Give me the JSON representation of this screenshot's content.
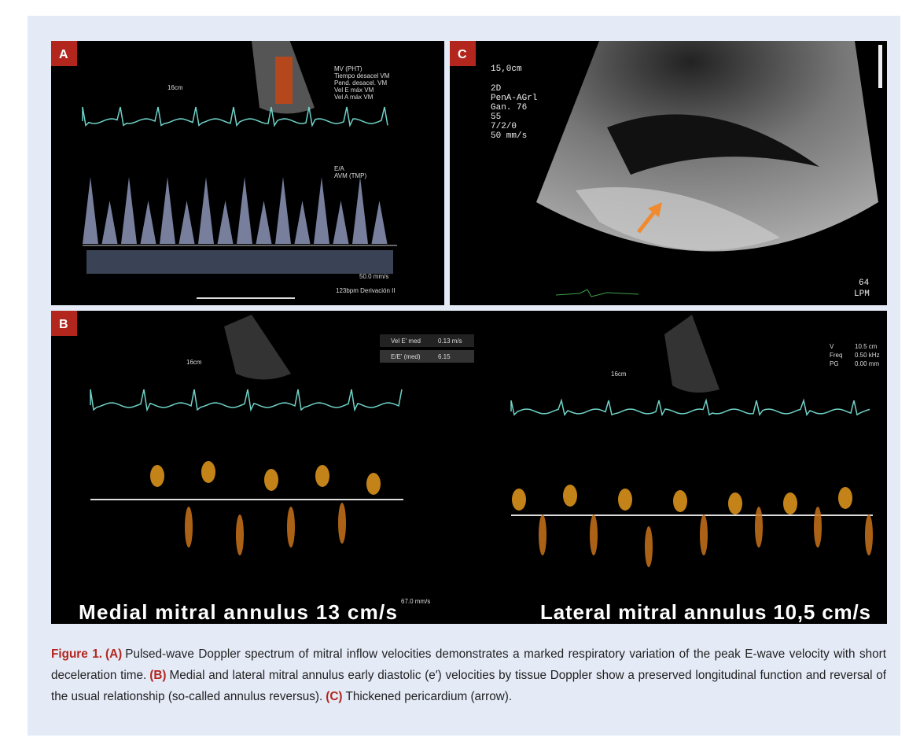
{
  "figure": {
    "panel_a": {
      "label": "A",
      "depth": "16cm",
      "measures": [
        "MV (PHT)",
        "Tiempo desacel VM",
        "Pend. desacel. VM",
        "Vel E máx VM",
        "Vel A máx VM",
        "E/A",
        "AVM (TMP)"
      ],
      "sweep": "50.0 mm/s",
      "footer": "123bpm  Derivación II"
    },
    "panel_b": {
      "label": "B",
      "left_depth": "16cm",
      "left_measure": "Vel E' med",
      "left_measure_value": "0.13 m/s",
      "left_ratio": "E/E' (med)",
      "left_ratio_value": "6.15",
      "left_sweep": "67.0 mm/s",
      "right_depth": "16cm",
      "right_rows": [
        "V",
        "Freq",
        "PG"
      ],
      "right_values": [
        "10.5 cm",
        "0.50 kHz",
        "0.00 mm"
      ],
      "left_caption": "Medial mitral annulus 13 cm/s",
      "right_caption": "Lateral mitral annulus 10,5 cm/s"
    },
    "panel_c": {
      "label": "C",
      "depth": "15,0cm",
      "settings": [
        "2D",
        "PenA-AGrl",
        "Gan. 76",
        "55",
        "7/2/0",
        "50 mm/s"
      ],
      "heart_rate": "64",
      "heart_rate_unit": "LPM"
    }
  },
  "caption": {
    "figure_label": "Figure 1.",
    "parts": [
      {
        "label": "(A)",
        "text": "Pulsed-wave Doppler spectrum of mitral inflow velocities demonstrates a marked respiratory variation of the peak E-wave velocity with short deceleration time."
      },
      {
        "label": "(B)",
        "text": "Medial and lateral mitral annulus early diastolic (e′) velocities by tissue Doppler show a preserved longitudinal function and reversal of the usual relationship (so-called annulus reversus)."
      },
      {
        "label": "(C)",
        "text": "Thickened pericardium (arrow)."
      }
    ]
  }
}
